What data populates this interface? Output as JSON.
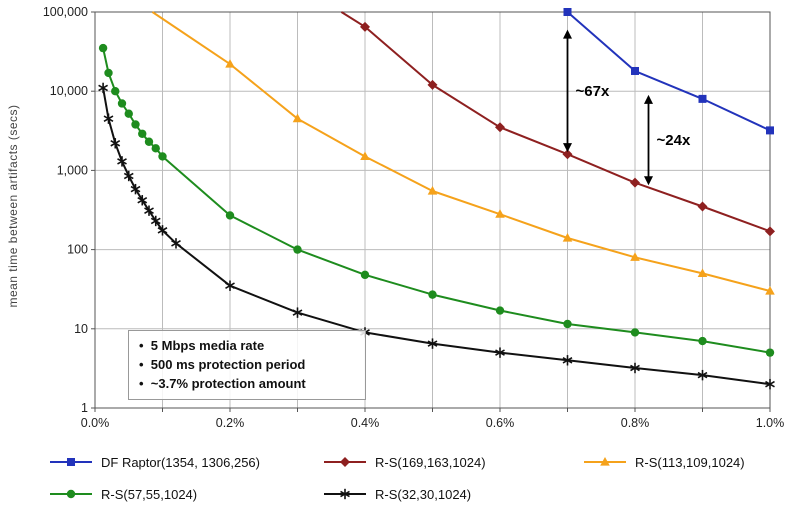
{
  "chart_data": {
    "type": "line",
    "title": "",
    "xlabel": "",
    "ylabel": "mean time between artifacts (secs)",
    "x_scale": "linear",
    "y_scale": "log",
    "xlim": [
      0,
      1.0
    ],
    "ylim": [
      1,
      100000
    ],
    "grid": true,
    "legend_position": "bottom",
    "x_ticks": [
      {
        "v": 0.0,
        "label": "0.0%"
      },
      {
        "v": 0.2,
        "label": "0.2%"
      },
      {
        "v": 0.4,
        "label": "0.4%"
      },
      {
        "v": 0.6,
        "label": "0.6%"
      },
      {
        "v": 0.8,
        "label": "0.8%"
      },
      {
        "v": 1.0,
        "label": "1.0%"
      }
    ],
    "y_ticks": [
      {
        "v": 1,
        "label": "1"
      },
      {
        "v": 10,
        "label": "10"
      },
      {
        "v": 100,
        "label": "100"
      },
      {
        "v": 1000,
        "label": "1,000"
      },
      {
        "v": 10000,
        "label": "10,000"
      },
      {
        "v": 100000,
        "label": "100,000"
      }
    ],
    "series": [
      {
        "name": "df-raptor",
        "label": "DF Raptor(1354, 1306,256)",
        "color": "#2233BB",
        "marker": "square",
        "points": [
          [
            0.7,
            100000
          ],
          [
            0.8,
            18000
          ],
          [
            0.9,
            8000
          ],
          [
            1.0,
            3200
          ]
        ]
      },
      {
        "name": "rs-169-163-1024",
        "label": "R-S(169,163,1024)",
        "color": "#8E2020",
        "marker": "diamond",
        "lead": [
          0.365,
          100000
        ],
        "points": [
          [
            0.4,
            65000
          ],
          [
            0.5,
            12000
          ],
          [
            0.6,
            3500
          ],
          [
            0.7,
            1600
          ],
          [
            0.8,
            700
          ],
          [
            0.9,
            350
          ],
          [
            1.0,
            170
          ]
        ]
      },
      {
        "name": "rs-113-109-1024",
        "label": "R-S(113,109,1024)",
        "color": "#F5A21B",
        "marker": "triangle",
        "lead": [
          0.085,
          100000
        ],
        "points": [
          [
            0.2,
            22000
          ],
          [
            0.3,
            4500
          ],
          [
            0.4,
            1500
          ],
          [
            0.5,
            550
          ],
          [
            0.6,
            280
          ],
          [
            0.7,
            140
          ],
          [
            0.8,
            80
          ],
          [
            0.9,
            50
          ],
          [
            1.0,
            30
          ]
        ]
      },
      {
        "name": "rs-57-55-1024",
        "label": "R-S(57,55,1024)",
        "color": "#1E8C1E",
        "marker": "circle",
        "points": [
          [
            0.012,
            35000
          ],
          [
            0.02,
            17000
          ],
          [
            0.03,
            10000
          ],
          [
            0.04,
            7000
          ],
          [
            0.05,
            5200
          ],
          [
            0.06,
            3800
          ],
          [
            0.07,
            2900
          ],
          [
            0.08,
            2300
          ],
          [
            0.09,
            1900
          ],
          [
            0.1,
            1500
          ],
          [
            0.2,
            270
          ],
          [
            0.3,
            100
          ],
          [
            0.4,
            48
          ],
          [
            0.5,
            27
          ],
          [
            0.6,
            17
          ],
          [
            0.7,
            11.5
          ],
          [
            0.8,
            9
          ],
          [
            0.9,
            7
          ],
          [
            1.0,
            5
          ]
        ]
      },
      {
        "name": "rs-32-30-1024",
        "label": "R-S(32,30,1024)",
        "color": "#111111",
        "marker": "asterisk",
        "points": [
          [
            0.012,
            11000
          ],
          [
            0.02,
            4500
          ],
          [
            0.03,
            2200
          ],
          [
            0.04,
            1300
          ],
          [
            0.05,
            850
          ],
          [
            0.06,
            580
          ],
          [
            0.07,
            420
          ],
          [
            0.08,
            310
          ],
          [
            0.09,
            230
          ],
          [
            0.1,
            175
          ],
          [
            0.12,
            120
          ],
          [
            0.2,
            35
          ],
          [
            0.3,
            16
          ],
          [
            0.4,
            9
          ],
          [
            0.5,
            6.5
          ],
          [
            0.6,
            5
          ],
          [
            0.7,
            4
          ],
          [
            0.8,
            3.2
          ],
          [
            0.9,
            2.6
          ],
          [
            1.0,
            2
          ]
        ]
      }
    ],
    "arrows": [
      {
        "x": 0.7,
        "y_top": 60000,
        "y_bottom": 1700,
        "label": "~67x"
      },
      {
        "x": 0.82,
        "y_top": 9000,
        "y_bottom": 650,
        "label": "~24x"
      }
    ],
    "notes": [
      "5 Mbps media rate",
      "500 ms protection period",
      "~3.7% protection amount"
    ],
    "colors": {
      "gridline": "#bcbcbc",
      "axis_border": "#555555",
      "arrow": "#000000",
      "tick_text": "#222222"
    }
  }
}
